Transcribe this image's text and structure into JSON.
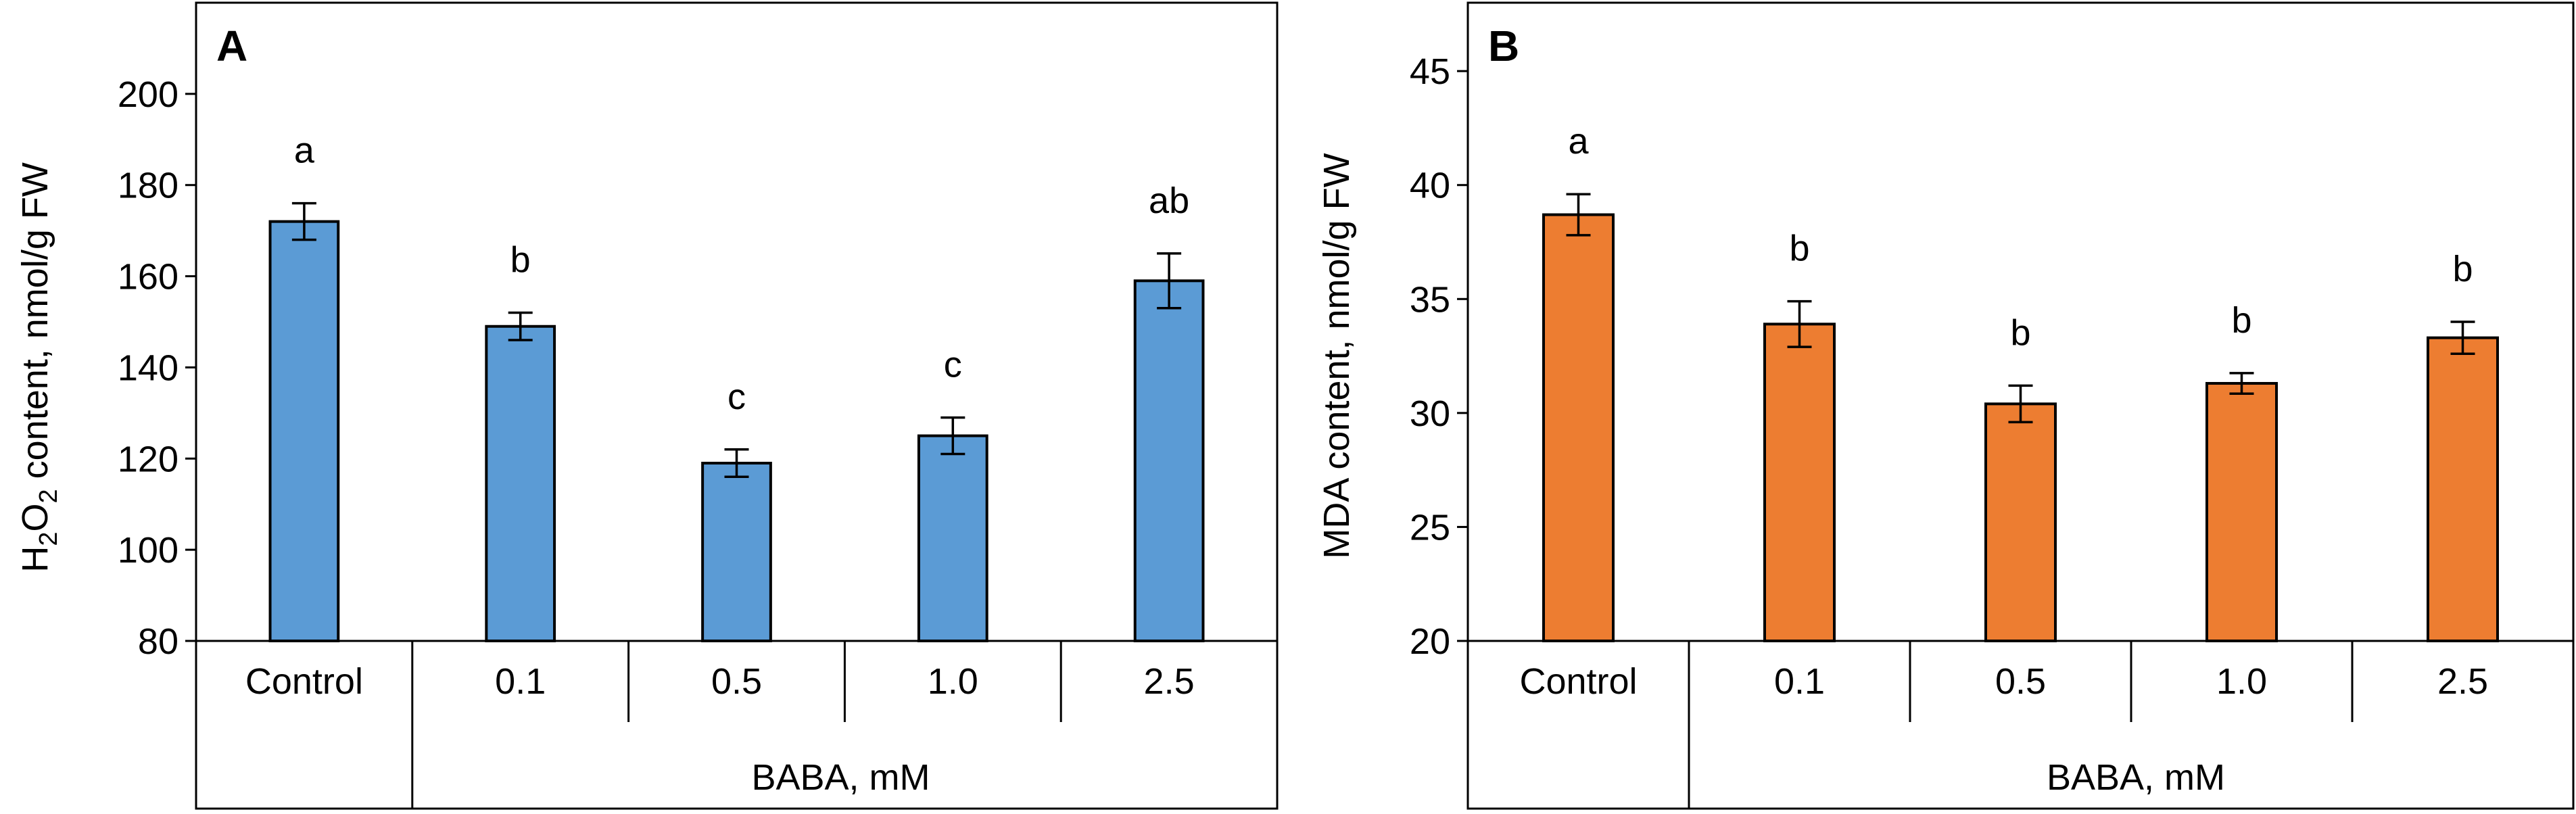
{
  "chart_data": [
    {
      "type": "bar",
      "panel_label": "A",
      "categories": [
        "Control",
        "0.1",
        "0.5",
        "1.0",
        "2.5"
      ],
      "values": [
        172,
        149,
        119,
        125,
        159
      ],
      "errors": [
        4,
        3,
        3,
        4,
        6
      ],
      "sig_letters": [
        "a",
        "b",
        "c",
        "c",
        "ab"
      ],
      "ylabel_main": "H",
      "ylabel_sub1": "2",
      "ylabel_mid": "O",
      "ylabel_sub2": "2",
      "ylabel_rest": " content, nmol/g FW",
      "xgroup_label": "BABA, mM",
      "ylim": [
        80,
        220
      ],
      "yticks": [
        80,
        100,
        120,
        140,
        160,
        180,
        200
      ],
      "color": "#5b9bd5"
    },
    {
      "type": "bar",
      "panel_label": "B",
      "categories": [
        "Control",
        "0.1",
        "0.5",
        "1.0",
        "2.5"
      ],
      "values": [
        38.7,
        33.9,
        30.4,
        31.3,
        33.3
      ],
      "errors": [
        0.9,
        1.0,
        0.8,
        0.45,
        0.7
      ],
      "sig_letters": [
        "a",
        "b",
        "b",
        "b",
        "b"
      ],
      "ylabel": "MDA content, nmol/g FW",
      "xgroup_label": "BABA, mM",
      "ylim": [
        20,
        48
      ],
      "yticks": [
        20,
        25,
        30,
        35,
        40,
        45
      ],
      "color": "#ed7d31"
    }
  ]
}
